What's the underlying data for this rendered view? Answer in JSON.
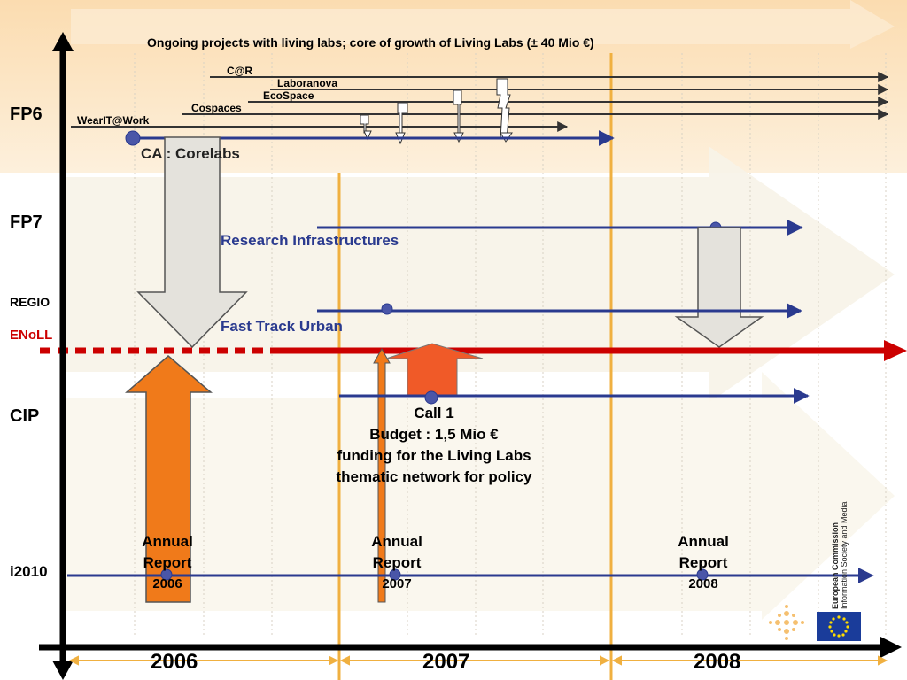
{
  "title": "Ongoing projects with living labs; core of growth of Living Labs (± 40 Mio €)",
  "rows": {
    "fp6": "FP6",
    "fp7": "FP7",
    "regio": "REGIO",
    "enoll": "ENoLL",
    "cip": "CIP",
    "i2010": "i2010"
  },
  "projects": {
    "car": "C@R",
    "laboranova": "Laboranova",
    "ecospace": "EcoSpace",
    "cospaces": "Cospaces",
    "wearit": "WearIT@Work"
  },
  "corelabs": "CA : Corelabs",
  "research_infrastructures": "Research Infrastructures",
  "fast_track_urban": "Fast Track Urban",
  "call": {
    "line1": "Call 1",
    "line2": "Budget : 1,5 Mio €",
    "line3": "funding for the Living Labs",
    "line4": "thematic network for policy"
  },
  "annual_reports": [
    {
      "line1": "Annual",
      "line2": "Report",
      "line3": "2006"
    },
    {
      "line1": "Annual",
      "line2": "Report",
      "line3": "2007"
    },
    {
      "line1": "Annual",
      "line2": "Report",
      "line3": "2008"
    }
  ],
  "years": [
    "2006",
    "2007",
    "2008"
  ],
  "logo": {
    "line1": "European Commission",
    "line2": "Information Society and Media"
  },
  "colors": {
    "navy": "#2a3a8f",
    "red": "#cc0000",
    "orange": "#f07a1a",
    "gold": "#f0b040",
    "peach": "#fbe3c2"
  }
}
